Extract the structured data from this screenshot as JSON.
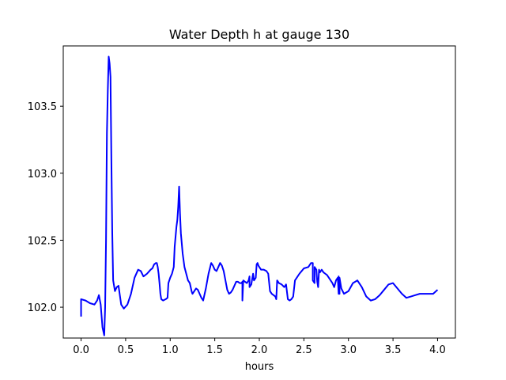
{
  "chart_data": {
    "type": "line",
    "title": "Water Depth h at gauge 130",
    "xlabel": "hours",
    "ylabel": "",
    "xlim": [
      -0.2,
      4.2
    ],
    "ylim": [
      101.77,
      103.95
    ],
    "xticks": [
      0.0,
      0.5,
      1.0,
      1.5,
      2.0,
      2.5,
      3.0,
      3.5,
      4.0
    ],
    "xtick_labels": [
      "0.0",
      "0.5",
      "1.0",
      "1.5",
      "2.0",
      "2.5",
      "3.0",
      "3.5",
      "4.0"
    ],
    "yticks": [
      102.0,
      102.5,
      103.0,
      103.5
    ],
    "ytick_labels": [
      "102.0",
      "102.5",
      "103.0",
      "103.5"
    ],
    "grid": false,
    "series": [
      {
        "color": "#0000ff",
        "x": [
          0.0,
          0.0,
          0.05,
          0.1,
          0.15,
          0.18,
          0.2,
          0.22,
          0.24,
          0.26,
          0.27,
          0.28,
          0.29,
          0.3,
          0.31,
          0.32,
          0.33,
          0.34,
          0.35,
          0.36,
          0.38,
          0.4,
          0.42,
          0.45,
          0.48,
          0.52,
          0.56,
          0.6,
          0.64,
          0.67,
          0.7,
          0.74,
          0.78,
          0.8,
          0.82,
          0.84,
          0.85,
          0.86,
          0.87,
          0.88,
          0.89,
          0.9,
          0.92,
          0.95,
          0.97,
          0.98,
          1.0,
          1.02,
          1.04,
          1.05,
          1.07,
          1.08,
          1.09,
          1.1,
          1.11,
          1.12,
          1.14,
          1.16,
          1.18,
          1.2,
          1.22,
          1.24,
          1.25,
          1.27,
          1.29,
          1.31,
          1.33,
          1.35,
          1.37,
          1.4,
          1.43,
          1.46,
          1.48,
          1.5,
          1.52,
          1.54,
          1.56,
          1.58,
          1.6,
          1.62,
          1.64,
          1.66,
          1.68,
          1.7,
          1.72,
          1.74,
          1.76,
          1.78,
          1.8,
          1.81,
          1.81,
          1.82,
          1.84,
          1.86,
          1.88,
          1.89,
          1.89,
          1.91,
          1.92,
          1.93,
          1.94,
          1.96,
          1.97,
          1.98,
          1.99,
          2.0,
          2.02,
          2.05,
          2.08,
          2.1,
          2.12,
          2.14,
          2.16,
          2.18,
          2.19,
          2.2,
          2.22,
          2.25,
          2.28,
          2.3,
          2.32,
          2.34,
          2.36,
          2.38,
          2.4,
          2.45,
          2.5,
          2.55,
          2.58,
          2.6,
          2.6,
          2.62,
          2.62,
          2.64,
          2.65,
          2.66,
          2.67,
          2.68,
          2.69,
          2.7,
          2.72,
          2.74,
          2.76,
          2.78,
          2.8,
          2.82,
          2.84,
          2.86,
          2.88,
          2.89,
          2.89,
          2.9,
          2.9,
          2.92,
          2.95,
          3.0,
          3.05,
          3.1,
          3.15,
          3.2,
          3.25,
          3.3,
          3.35,
          3.4,
          3.45,
          3.5,
          3.55,
          3.6,
          3.65,
          3.7,
          3.75,
          3.8,
          3.85,
          3.9,
          3.95,
          4.0
        ],
        "y": [
          101.93,
          102.06,
          102.05,
          102.03,
          102.02,
          102.05,
          102.09,
          102.02,
          101.85,
          101.79,
          102.0,
          102.5,
          103.3,
          103.62,
          103.87,
          103.82,
          103.72,
          103.1,
          102.55,
          102.2,
          102.12,
          102.15,
          102.16,
          102.02,
          101.99,
          102.02,
          102.1,
          102.22,
          102.28,
          102.27,
          102.23,
          102.25,
          102.28,
          102.29,
          102.32,
          102.33,
          102.33,
          102.3,
          102.25,
          102.18,
          102.1,
          102.06,
          102.05,
          102.06,
          102.07,
          102.18,
          102.22,
          102.25,
          102.3,
          102.45,
          102.6,
          102.65,
          102.75,
          102.9,
          102.7,
          102.55,
          102.4,
          102.3,
          102.25,
          102.2,
          102.18,
          102.12,
          102.1,
          102.12,
          102.14,
          102.13,
          102.1,
          102.07,
          102.05,
          102.14,
          102.25,
          102.33,
          102.31,
          102.28,
          102.27,
          102.3,
          102.33,
          102.31,
          102.27,
          102.2,
          102.13,
          102.1,
          102.11,
          102.13,
          102.16,
          102.19,
          102.19,
          102.18,
          102.18,
          102.19,
          102.05,
          102.2,
          102.19,
          102.18,
          102.2,
          102.23,
          102.15,
          102.17,
          102.21,
          102.25,
          102.2,
          102.22,
          102.32,
          102.33,
          102.31,
          102.3,
          102.28,
          102.28,
          102.27,
          102.25,
          102.12,
          102.1,
          102.09,
          102.08,
          102.06,
          102.2,
          102.18,
          102.17,
          102.15,
          102.17,
          102.06,
          102.05,
          102.06,
          102.08,
          102.2,
          102.25,
          102.29,
          102.3,
          102.33,
          102.33,
          102.2,
          102.18,
          102.3,
          102.28,
          102.19,
          102.15,
          102.28,
          102.26,
          102.27,
          102.28,
          102.26,
          102.25,
          102.24,
          102.22,
          102.2,
          102.18,
          102.15,
          102.2,
          102.22,
          102.1,
          102.23,
          102.1,
          102.22,
          102.14,
          102.1,
          102.12,
          102.18,
          102.2,
          102.15,
          102.08,
          102.05,
          102.06,
          102.09,
          102.13,
          102.17,
          102.18,
          102.14,
          102.1,
          102.07,
          102.08,
          102.09,
          102.1,
          102.1,
          102.1,
          102.1,
          102.13
        ]
      }
    ]
  }
}
